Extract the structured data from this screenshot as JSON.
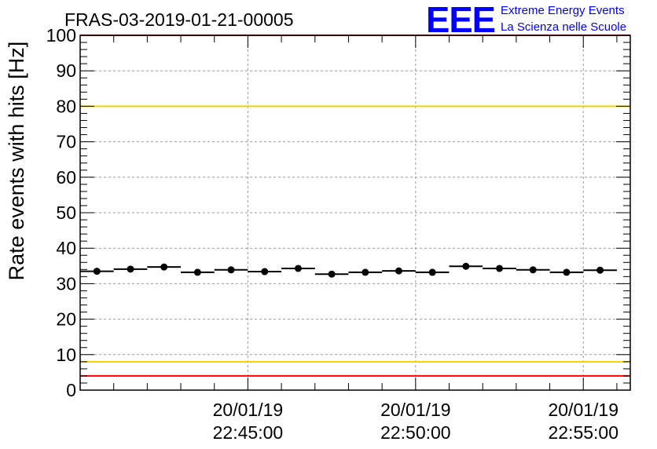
{
  "chart_data": {
    "type": "scatter",
    "title": "FRAS-03-2019-01-21-00005",
    "xlabel": "",
    "ylabel": "Rate events with hits [Hz]",
    "ylim": [
      0,
      100
    ],
    "yticks": [
      0,
      10,
      20,
      30,
      40,
      50,
      60,
      70,
      80,
      90,
      100
    ],
    "x_unit": "minutes after 22:40:00 on 20/01/19",
    "xlim": [
      0.0,
      16.4
    ],
    "xtick_labels": [
      {
        "x": 5,
        "date": "20/01/19",
        "time": "22:45:00"
      },
      {
        "x": 10,
        "date": "20/01/19",
        "time": "22:50:00"
      },
      {
        "x": 15,
        "date": "20/01/19",
        "time": "22:55:00"
      }
    ],
    "bin_width": 1.0,
    "x": [
      0.5,
      1.5,
      2.5,
      3.5,
      4.5,
      5.5,
      6.5,
      7.5,
      8.5,
      9.5,
      10.5,
      11.5,
      12.5,
      13.5,
      14.5,
      15.5
    ],
    "values": [
      33.5,
      34.1,
      34.7,
      33.2,
      33.9,
      33.4,
      34.3,
      32.7,
      33.2,
      33.6,
      33.2,
      34.9,
      34.3,
      33.9,
      33.2,
      33.8
    ],
    "reference_lines": [
      {
        "name": "upper-red-limit",
        "y": 100,
        "color": "#ff0000"
      },
      {
        "name": "upper-yellow-limit",
        "y": 80,
        "color": "#f5d000"
      },
      {
        "name": "lower-yellow-limit",
        "y": 8,
        "color": "#f5d000"
      },
      {
        "name": "lower-red-limit",
        "y": 4,
        "color": "#ff0000"
      }
    ],
    "grid": true
  },
  "logo": {
    "text": "EEE",
    "line1": "Extreme Energy Events",
    "line2": "La Scienza nelle Scuole",
    "color": "#0000ff"
  },
  "colors": {
    "marker": "#000000",
    "grid": "#9a9a9a",
    "axis": "#000000"
  }
}
